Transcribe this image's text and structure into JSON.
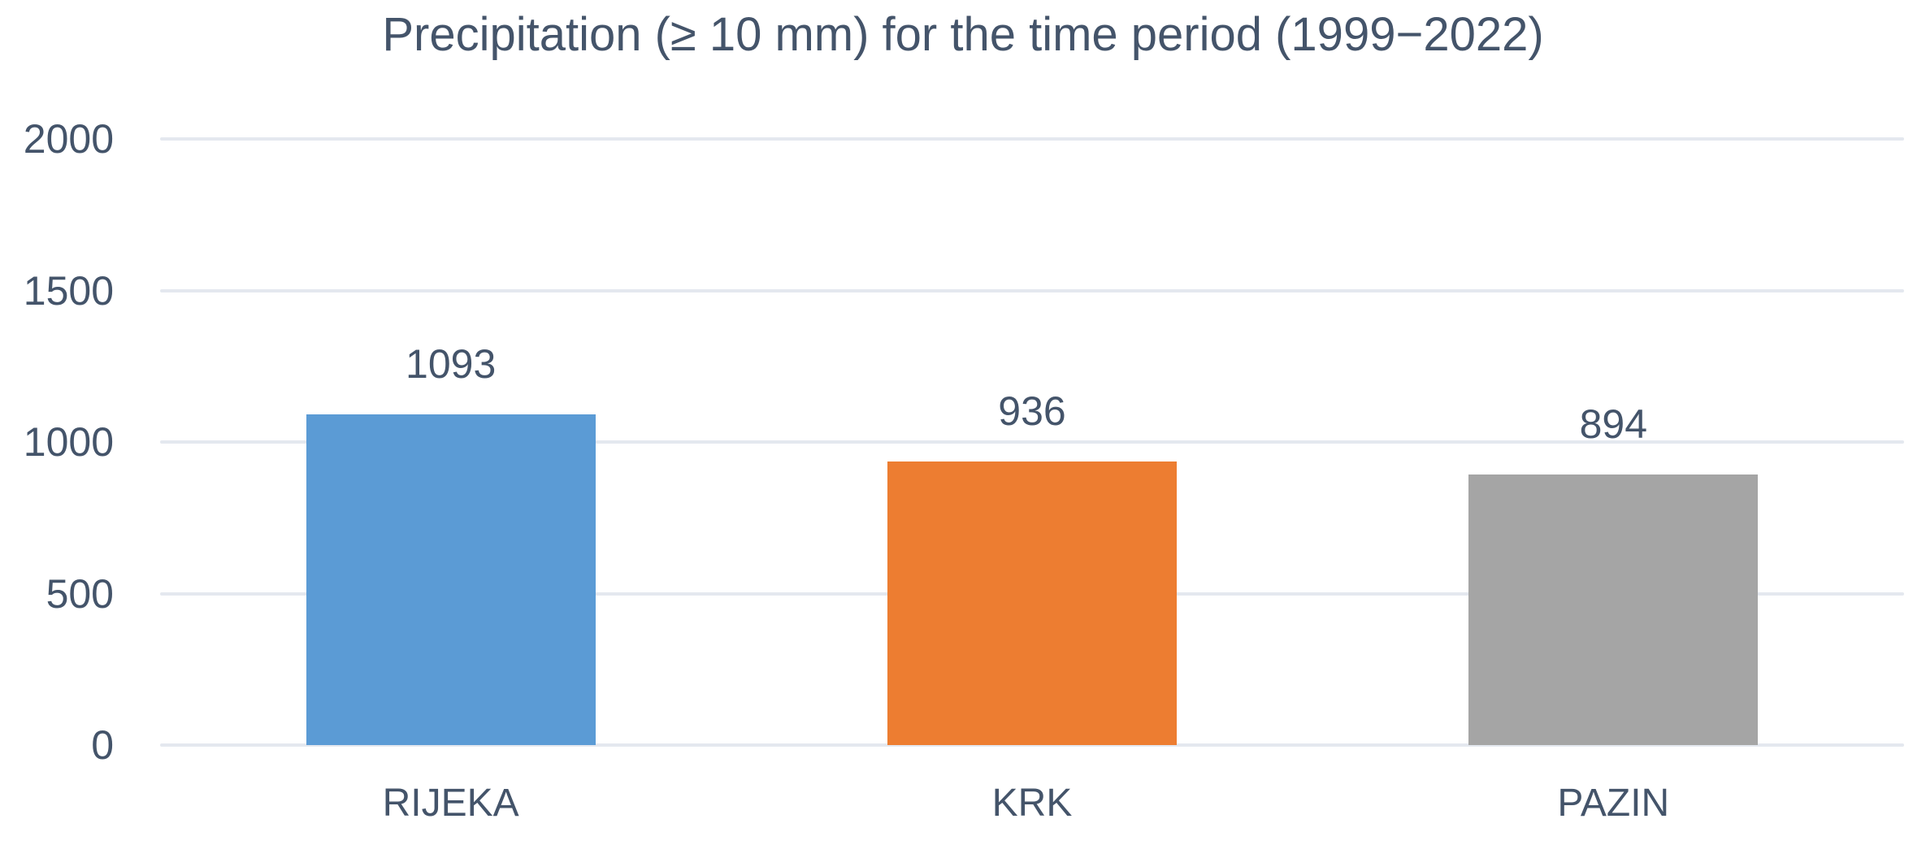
{
  "chart_data": {
    "type": "bar",
    "title": "Precipitation (≥ 10 mm) for the time period (1999−2022)",
    "categories": [
      "RIJEKA",
      "KRK",
      "PAZIN"
    ],
    "values": [
      1093,
      936,
      894
    ],
    "data_labels": [
      "1093",
      "936",
      "894"
    ],
    "bar_colors": [
      "#5B9BD5",
      "#ED7D31",
      "#A5A5A5"
    ],
    "y_ticks": [
      0,
      500,
      1000,
      1500,
      2000
    ],
    "y_tick_labels": [
      "0",
      "500",
      "1000",
      "1500",
      "2000"
    ],
    "ylim": [
      0,
      2000
    ],
    "xlabel": "",
    "ylabel": "",
    "grid": true,
    "legend_position": "none",
    "colors": {
      "text": "#44546A",
      "gridline": "#E4E8EF",
      "background": "#FFFFFF"
    }
  }
}
